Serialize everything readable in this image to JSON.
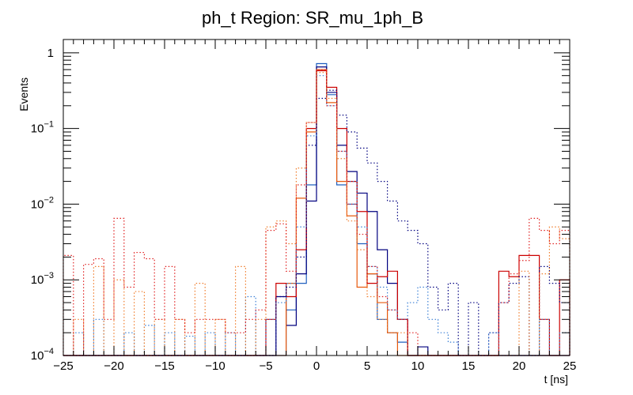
{
  "chart_data": {
    "type": "line",
    "subtype": "step-histogram",
    "title": "ph_t Region: SR_mu_1ph_B",
    "xlabel": "t [ns]",
    "ylabel": "Events",
    "xlim": [
      -25,
      25
    ],
    "ylim": [
      0.0001,
      1.5
    ],
    "yscale": "log",
    "bin_width": 1,
    "x_ticks": [
      {
        "value": -25,
        "label": "−25"
      },
      {
        "value": -20,
        "label": "−20"
      },
      {
        "value": -15,
        "label": "−15"
      },
      {
        "value": -10,
        "label": "−10"
      },
      {
        "value": -5,
        "label": "−5"
      },
      {
        "value": 0,
        "label": "0"
      },
      {
        "value": 5,
        "label": "5"
      },
      {
        "value": 10,
        "label": "10"
      },
      {
        "value": 15,
        "label": "15"
      },
      {
        "value": 20,
        "label": "20"
      },
      {
        "value": 25,
        "label": "25"
      }
    ],
    "y_ticks": [
      {
        "value": 1,
        "base": "1",
        "exp": ""
      },
      {
        "value": 0.1,
        "base": "10",
        "exp": "−1"
      },
      {
        "value": 0.01,
        "base": "10",
        "exp": "−2"
      },
      {
        "value": 0.001,
        "base": "10",
        "exp": "−3"
      },
      {
        "value": 0.0001,
        "base": "10",
        "exp": "−4"
      }
    ],
    "series": [
      {
        "name": "series-blue-solid",
        "color": "#1f5fbf",
        "dash": "solid",
        "x": [
          -3,
          -2,
          -1,
          0,
          1,
          2,
          3,
          4,
          5,
          6,
          7,
          8
        ],
        "values": [
          0.0004,
          0.0009,
          0.018,
          0.72,
          0.28,
          0.018,
          0.01,
          0.003,
          0.0012,
          0.0003,
          0.0002,
          0.00015
        ]
      },
      {
        "name": "series-navy-solid",
        "color": "#00007f",
        "dash": "solid",
        "x": [
          -4,
          -3,
          -2,
          -1,
          0,
          1,
          2,
          3,
          4,
          5,
          6,
          7,
          8,
          10
        ],
        "values": [
          0.0006,
          0.00025,
          0.0012,
          0.011,
          0.65,
          0.3,
          0.06,
          0.027,
          0.014,
          0.008,
          0.0025,
          0.0009,
          0.0003,
          0.00013
        ]
      },
      {
        "name": "series-orange-solid",
        "color": "#e8590c",
        "dash": "solid",
        "x": [
          -3,
          -2,
          -1,
          0,
          1,
          2,
          3,
          4,
          5,
          6,
          7
        ],
        "values": [
          0.0009,
          0.012,
          0.09,
          0.6,
          0.22,
          0.02,
          0.007,
          0.0008,
          0.0012,
          0.0005,
          0.0002
        ]
      },
      {
        "name": "series-red-solid",
        "color": "#cc0000",
        "dash": "solid",
        "x": [
          -5,
          -4,
          -3,
          -2,
          -1,
          0,
          1,
          2,
          3,
          4,
          5,
          6,
          7,
          8,
          18,
          19,
          20,
          21,
          22,
          24
        ],
        "values": [
          0.0003,
          0.0009,
          0.0006,
          0.0025,
          0.1,
          0.58,
          0.35,
          0.1,
          0.02,
          0.008,
          0.0009,
          0.0011,
          0.0013,
          0.0003,
          0.0013,
          0.0011,
          0.0021,
          0.0021,
          0.0003,
          0.001
        ]
      },
      {
        "name": "series-navy-dotted",
        "color": "#00007f",
        "dash": "dotted",
        "x": [
          -4,
          -3,
          -2,
          -1,
          0,
          1,
          2,
          3,
          4,
          5,
          6,
          7,
          8,
          9,
          10,
          11,
          12,
          13,
          15,
          17,
          18,
          19,
          20,
          22,
          23,
          24
        ],
        "values": [
          0.0006,
          0.0008,
          0.002,
          0.06,
          0.25,
          0.32,
          0.15,
          0.09,
          0.055,
          0.035,
          0.02,
          0.011,
          0.006,
          0.0045,
          0.003,
          0.0008,
          0.0004,
          0.0009,
          0.0005,
          0.0002,
          0.0005,
          0.0009,
          0.0011,
          0.0015,
          0.0009,
          0.0005
        ]
      },
      {
        "name": "series-blue-dotted",
        "color": "#3a7fd5",
        "dash": "dotted",
        "x": [
          -25,
          -24,
          -22,
          -19,
          -17,
          -15,
          -13,
          -11,
          -9,
          -7,
          -5,
          -4,
          -3,
          -2,
          -1,
          0,
          1,
          2,
          3,
          4,
          5,
          6,
          7,
          8,
          9,
          10,
          11,
          12,
          13,
          15,
          17,
          20,
          22,
          24
        ],
        "values": [
          0.0001,
          0.0002,
          0.0003,
          0.0002,
          0.00025,
          0.0002,
          0.00018,
          0.0002,
          0.0002,
          0.0006,
          0.0003,
          0.0005,
          0.0009,
          0.005,
          0.08,
          0.5,
          0.2,
          0.05,
          0.02,
          0.005,
          0.0015,
          0.0008,
          0.0004,
          0.0003,
          0.0005,
          0.0008,
          0.0003,
          0.0002,
          0.00015,
          0.0001,
          0.0002,
          0.0001,
          0.0003,
          0.0002
        ]
      },
      {
        "name": "series-orange-dotted",
        "color": "#f07c2a",
        "dash": "dotted",
        "x": [
          -24,
          -22,
          -20,
          -18,
          -16,
          -14,
          -12,
          -10,
          -8,
          -6,
          -5,
          -4,
          -3,
          -2,
          -1,
          0,
          1,
          2,
          3,
          4,
          5,
          6,
          7,
          8,
          10,
          20,
          22,
          23,
          24
        ],
        "values": [
          0.0003,
          0.0015,
          0.001,
          0.0007,
          0.0003,
          0.0003,
          0.0009,
          0.0003,
          0.0015,
          0.0003,
          0.005,
          0.006,
          0.003,
          0.03,
          0.12,
          0.55,
          0.25,
          0.04,
          0.006,
          0.0025,
          0.0006,
          0.0003,
          0.0002,
          0.0002,
          0.0001,
          0.0013,
          0.0012,
          0.005,
          0.0035
        ]
      },
      {
        "name": "series-red-dotted",
        "color": "#e02020",
        "dash": "dotted",
        "x": [
          -25,
          -23,
          -22,
          -21,
          -20,
          -19,
          -18,
          -17,
          -16,
          -15,
          -14,
          -13,
          -12,
          -11,
          -10,
          -9,
          -8,
          -7,
          -6,
          -5,
          -4,
          -3,
          -2,
          -1,
          0,
          1,
          2,
          3,
          4,
          5,
          6,
          7,
          8,
          9,
          10,
          18,
          19,
          20,
          21,
          22,
          23,
          24
        ],
        "values": [
          0.0021,
          0.0016,
          0.0019,
          0.0003,
          0.0065,
          0.0008,
          0.0023,
          0.0019,
          0.0003,
          0.0015,
          0.0003,
          0.0002,
          0.0003,
          0.0003,
          0.0003,
          0.0002,
          0.0002,
          0.0003,
          0.0004,
          0.0045,
          0.0055,
          0.0013,
          0.018,
          0.12,
          0.6,
          0.2,
          0.05,
          0.01,
          0.004,
          0.0015,
          0.0006,
          0.0004,
          0.0003,
          0.0002,
          0.0001,
          0.0005,
          0.0012,
          0.0018,
          0.0065,
          0.0045,
          0.003,
          0.0045
        ]
      }
    ],
    "legend": "none",
    "grid": false
  }
}
